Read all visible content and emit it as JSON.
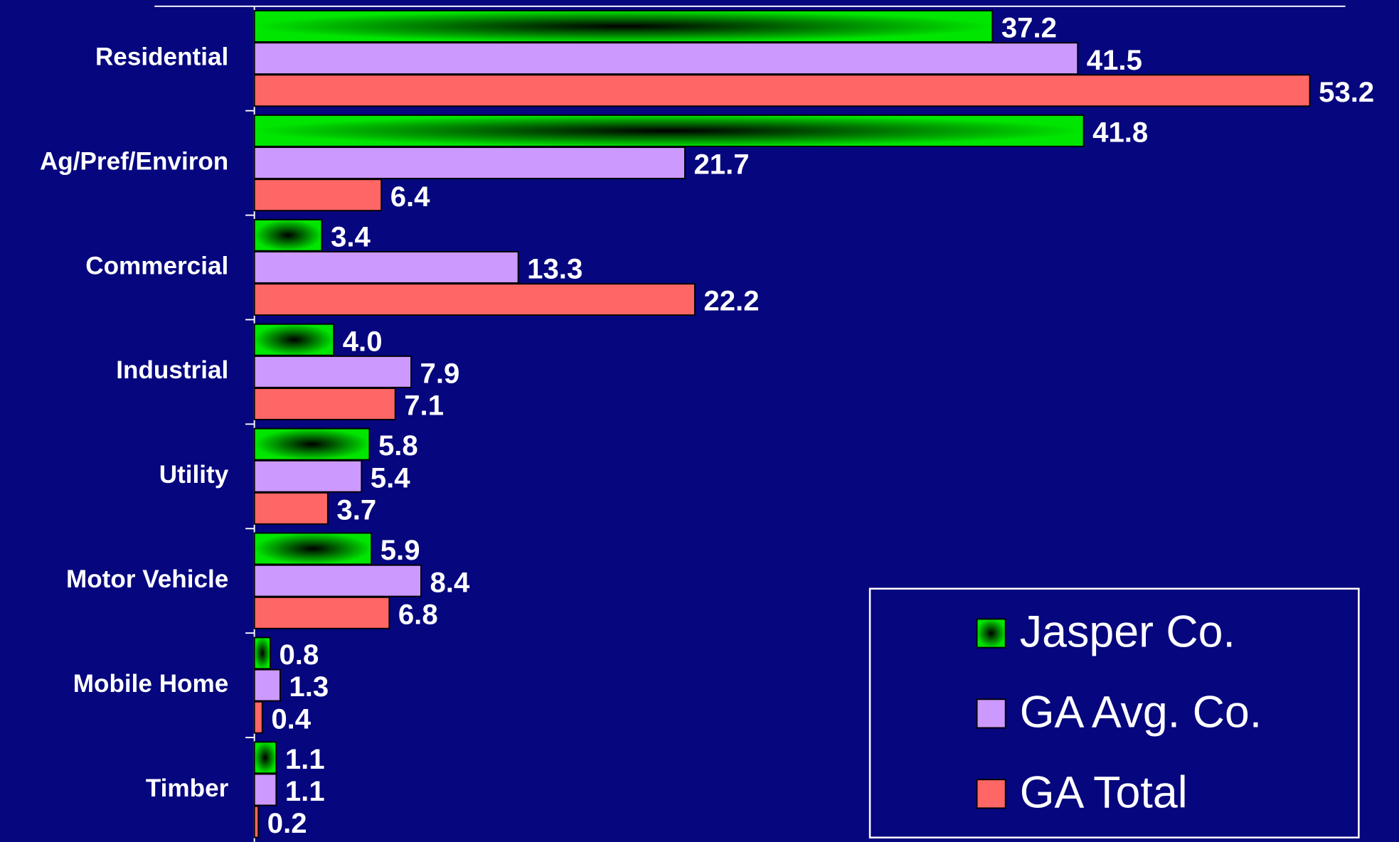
{
  "chart_data": {
    "type": "bar",
    "orientation": "horizontal",
    "categories": [
      "Residential",
      "Ag/Pref/Environ",
      "Commercial",
      "Industrial",
      "Utility",
      "Motor Vehicle",
      "Mobile Home",
      "Timber"
    ],
    "series": [
      {
        "name": "Jasper Co.",
        "color": "#00e600",
        "values": [
          37.2,
          41.8,
          3.4,
          4,
          5.8,
          5.9,
          0.8,
          1.1
        ],
        "value_labels": [
          "37.2",
          "41.8",
          "3.4",
          "4.0",
          "5.8",
          "5.9",
          "0.8",
          "1.1"
        ]
      },
      {
        "name": "GA Avg. Co.",
        "color": "#cc99ff",
        "values": [
          41.5,
          21.7,
          13.3,
          7.9,
          5.4,
          8.4,
          1.3,
          1.1
        ],
        "value_labels": [
          "41.5",
          "21.7",
          "13.3",
          "7.9",
          "5.4",
          "8.4",
          "1.3",
          "1.1"
        ]
      },
      {
        "name": "GA Total",
        "color": "#ff6666",
        "values": [
          53.2,
          6.4,
          22.2,
          7.1,
          3.7,
          6.8,
          0.4,
          0.2
        ],
        "value_labels": [
          "53.2",
          "6.4",
          "22.2",
          "7.1",
          "3.7",
          "6.8",
          "0.4",
          "0.2"
        ]
      }
    ],
    "xlim": [
      0,
      60
    ],
    "legend": "lower right"
  }
}
